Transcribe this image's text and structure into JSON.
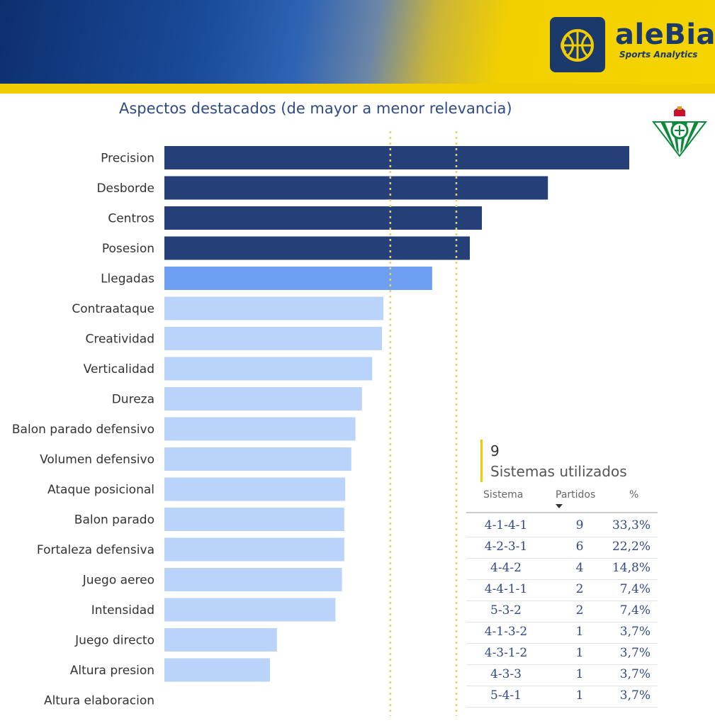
{
  "brand": {
    "name": "aleBia",
    "tagline": "Sports Analytics",
    "colors": {
      "navy": "#1b3a6b",
      "yellow": "#f0cc00"
    }
  },
  "crest": {
    "icon": "real-betis-crest-icon"
  },
  "chart_data": {
    "type": "bar",
    "orientation": "horizontal",
    "title": "Aspectos destacados (de mayor a menor relevancia)",
    "categories": [
      "Precision",
      "Desborde",
      "Centros",
      "Posesion",
      "Llegadas",
      "Contraataque",
      "Creatividad",
      "Verticalidad",
      "Dureza",
      "Balon parado defensivo",
      "Volumen defensivo",
      "Ataque posicional",
      "Balon parado",
      "Fortaleza defensiva",
      "Juego aereo",
      "Intensidad",
      "Juego directo",
      "Altura presion",
      "Altura elaboracion"
    ],
    "values": [
      100,
      82.5,
      68.3,
      65.7,
      57.6,
      47.1,
      46.8,
      44.7,
      42.5,
      41.1,
      40.2,
      38.9,
      38.7,
      38.7,
      38.2,
      36.8,
      24.2,
      22.7,
      0
    ],
    "bar_colors": [
      "#253f78",
      "#253f78",
      "#253f78",
      "#253f78",
      "#6e9ff0",
      "#b9d3fb",
      "#b9d3fb",
      "#b9d3fb",
      "#b9d3fb",
      "#b9d3fb",
      "#b9d3fb",
      "#b9d3fb",
      "#b9d3fb",
      "#b9d3fb",
      "#b9d3fb",
      "#b9d3fb",
      "#b9d3fb",
      "#b9d3fb",
      "#b9d3fb"
    ],
    "reference_lines": [
      48.6,
      62.8
    ],
    "reference_line_color": "#e6cf6a",
    "xlim": [
      0,
      100
    ],
    "grid": false
  },
  "kpi": {
    "value": "9",
    "label": "Sistemas utilizados"
  },
  "table": {
    "headers": {
      "sistema": "Sistema",
      "partidos": "Partidos",
      "pct": "%"
    },
    "rows": [
      {
        "sistema": "4-1-4-1",
        "partidos": "9",
        "pct": "33,3%"
      },
      {
        "sistema": "4-2-3-1",
        "partidos": "6",
        "pct": "22,2%"
      },
      {
        "sistema": "4-4-2",
        "partidos": "4",
        "pct": "14,8%"
      },
      {
        "sistema": "4-4-1-1",
        "partidos": "2",
        "pct": "7,4%"
      },
      {
        "sistema": "5-3-2",
        "partidos": "2",
        "pct": "7,4%"
      },
      {
        "sistema": "4-1-3-2",
        "partidos": "1",
        "pct": "3,7%"
      },
      {
        "sistema": "4-3-1-2",
        "partidos": "1",
        "pct": "3,7%"
      },
      {
        "sistema": "4-3-3",
        "partidos": "1",
        "pct": "3,7%"
      },
      {
        "sistema": "5-4-1",
        "partidos": "1",
        "pct": "3,7%"
      }
    ]
  }
}
